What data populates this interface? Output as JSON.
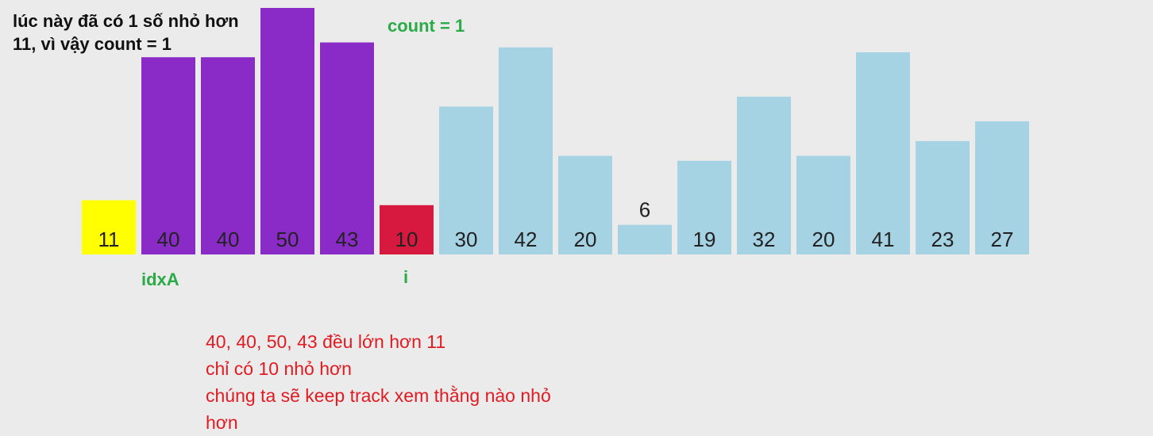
{
  "notes": {
    "top": "lúc này đã có 1 số nhỏ hơn 11, vì vậy count = 1",
    "count": "count = 1",
    "pointer_a": "idxA",
    "pointer_i": "i",
    "bottom_lines": [
      "40, 40, 50, 43 đều lớn hơn 11",
      "chỉ có 10 nhỏ hơn",
      "chúng ta sẽ keep track xem thằng nào nhỏ",
      "hơn"
    ]
  },
  "colors": {
    "pivot": "#ffff00",
    "greater": "#8a2bc8",
    "smaller": "#d71940",
    "unprocessed": "#a6d3e3",
    "annotation_green": "#2bab48",
    "annotation_red": "#e01b22"
  },
  "chart_data": {
    "type": "bar",
    "values": [
      11,
      40,
      40,
      50,
      43,
      10,
      30,
      42,
      20,
      6,
      19,
      32,
      20,
      41,
      23,
      27
    ],
    "states": [
      "pivot",
      "greater",
      "greater",
      "greater",
      "greater",
      "smaller",
      "unprocessed",
      "unprocessed",
      "unprocessed",
      "unprocessed",
      "unprocessed",
      "unprocessed",
      "unprocessed",
      "unprocessed",
      "unprocessed",
      "unprocessed"
    ],
    "labels": [
      "11",
      "40",
      "40",
      "50",
      "43",
      "10",
      "30",
      "42",
      "20",
      "6",
      "19",
      "32",
      "20",
      "41",
      "23",
      "27"
    ],
    "pointers": [
      {
        "label_key": "pointer_a",
        "index": 1
      },
      {
        "label_key": "pointer_i",
        "index": 5
      }
    ]
  }
}
